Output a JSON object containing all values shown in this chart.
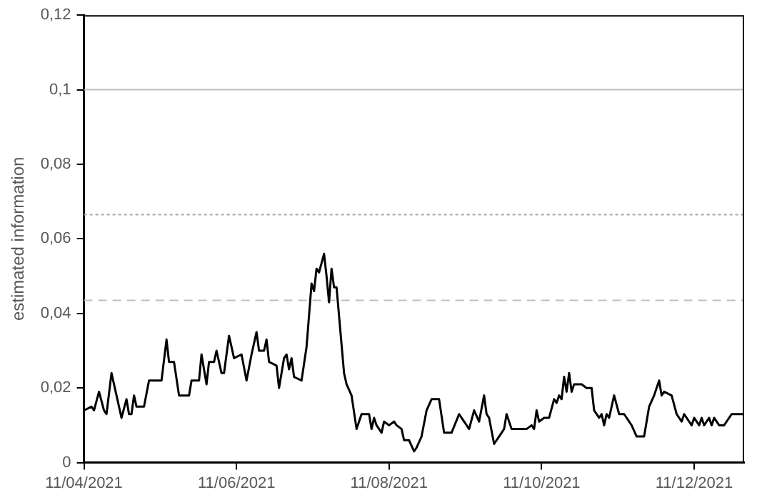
{
  "chart_data": {
    "type": "line",
    "ylabel": "estimated information",
    "x": [
      "2021-04-11",
      "2021-04-14",
      "2021-04-15",
      "2021-04-17",
      "2021-04-19",
      "2021-04-20",
      "2021-04-22",
      "2021-04-24",
      "2021-04-26",
      "2021-04-28",
      "2021-04-29",
      "2021-04-30",
      "2021-05-01",
      "2021-05-02",
      "2021-05-05",
      "2021-05-07",
      "2021-05-12",
      "2021-05-14",
      "2021-05-15",
      "2021-05-17",
      "2021-05-19",
      "2021-05-20",
      "2021-05-23",
      "2021-05-24",
      "2021-05-27",
      "2021-05-28",
      "2021-05-30",
      "2021-05-31",
      "2021-06-02",
      "2021-06-03",
      "2021-06-05",
      "2021-06-06",
      "2021-06-08",
      "2021-06-10",
      "2021-06-13",
      "2021-06-15",
      "2021-06-17",
      "2021-06-19",
      "2021-06-20",
      "2021-06-22",
      "2021-06-23",
      "2021-06-24",
      "2021-06-27",
      "2021-06-28",
      "2021-06-30",
      "2021-07-01",
      "2021-07-02",
      "2021-07-03",
      "2021-07-04",
      "2021-07-07",
      "2021-07-09",
      "2021-07-11",
      "2021-07-12",
      "2021-07-13",
      "2021-07-14",
      "2021-07-16",
      "2021-07-17",
      "2021-07-18",
      "2021-07-19",
      "2021-07-20",
      "2021-07-21",
      "2021-07-24",
      "2021-07-25",
      "2021-07-27",
      "2021-07-29",
      "2021-07-31",
      "2021-08-03",
      "2021-08-04",
      "2021-08-05",
      "2021-08-06",
      "2021-08-08",
      "2021-08-09",
      "2021-08-11",
      "2021-08-13",
      "2021-08-14",
      "2021-08-16",
      "2021-08-17",
      "2021-08-19",
      "2021-08-21",
      "2021-08-22",
      "2021-08-24",
      "2021-08-26",
      "2021-08-28",
      "2021-08-31",
      "2021-09-02",
      "2021-09-05",
      "2021-09-08",
      "2021-09-10",
      "2021-09-12",
      "2021-09-14",
      "2021-09-16",
      "2021-09-18",
      "2021-09-19",
      "2021-09-20",
      "2021-09-22",
      "2021-09-24",
      "2021-09-26",
      "2021-09-27",
      "2021-09-29",
      "2021-10-05",
      "2021-10-07",
      "2021-10-08",
      "2021-10-09",
      "2021-10-10",
      "2021-10-12",
      "2021-10-14",
      "2021-10-16",
      "2021-10-17",
      "2021-10-18",
      "2021-10-19",
      "2021-10-20",
      "2021-10-21",
      "2021-10-22",
      "2021-10-23",
      "2021-10-24",
      "2021-10-27",
      "2021-10-29",
      "2021-10-31",
      "2021-11-01",
      "2021-11-03",
      "2021-11-04",
      "2021-11-05",
      "2021-11-06",
      "2021-11-07",
      "2021-11-09",
      "2021-11-11",
      "2021-11-13",
      "2021-11-16",
      "2021-11-18",
      "2021-11-21",
      "2021-11-23",
      "2021-11-25",
      "2021-11-27",
      "2021-11-28",
      "2021-11-29",
      "2021-12-02",
      "2021-12-04",
      "2021-12-06",
      "2021-12-07",
      "2021-12-10",
      "2021-12-11",
      "2021-12-13",
      "2021-12-14",
      "2021-12-15",
      "2021-12-17",
      "2021-12-18",
      "2021-12-19",
      "2021-12-21",
      "2021-12-23",
      "2021-12-26",
      "2021-12-31"
    ],
    "series": [
      {
        "color": "#000000",
        "values": [
          0.014,
          0.015,
          0.014,
          0.019,
          0.014,
          0.013,
          0.024,
          0.018,
          0.012,
          0.017,
          0.013,
          0.013,
          0.018,
          0.015,
          0.015,
          0.022,
          0.022,
          0.033,
          0.027,
          0.027,
          0.018,
          0.018,
          0.018,
          0.022,
          0.022,
          0.029,
          0.021,
          0.027,
          0.027,
          0.03,
          0.024,
          0.024,
          0.034,
          0.028,
          0.029,
          0.022,
          0.029,
          0.035,
          0.03,
          0.03,
          0.033,
          0.027,
          0.026,
          0.02,
          0.028,
          0.029,
          0.025,
          0.028,
          0.023,
          0.022,
          0.031,
          0.048,
          0.046,
          0.052,
          0.051,
          0.056,
          0.05,
          0.043,
          0.052,
          0.047,
          0.047,
          0.024,
          0.021,
          0.018,
          0.009,
          0.013,
          0.013,
          0.009,
          0.012,
          0.01,
          0.008,
          0.011,
          0.01,
          0.011,
          0.01,
          0.009,
          0.006,
          0.006,
          0.003,
          0.004,
          0.007,
          0.014,
          0.017,
          0.017,
          0.008,
          0.008,
          0.013,
          0.011,
          0.009,
          0.014,
          0.011,
          0.018,
          0.013,
          0.012,
          0.005,
          0.007,
          0.009,
          0.013,
          0.009,
          0.009,
          0.01,
          0.009,
          0.014,
          0.011,
          0.012,
          0.012,
          0.017,
          0.016,
          0.018,
          0.017,
          0.023,
          0.019,
          0.024,
          0.019,
          0.021,
          0.021,
          0.02,
          0.02,
          0.014,
          0.012,
          0.013,
          0.01,
          0.013,
          0.012,
          0.018,
          0.013,
          0.013,
          0.01,
          0.007,
          0.007,
          0.015,
          0.018,
          0.022,
          0.018,
          0.019,
          0.018,
          0.013,
          0.011,
          0.013,
          0.01,
          0.012,
          0.01,
          0.012,
          0.01,
          0.012,
          0.01,
          0.012,
          0.01,
          0.01,
          0.013,
          0.013
        ]
      }
    ],
    "xlim": [
      "2021-04-11",
      "2021-12-31"
    ],
    "xticks": [
      {
        "value": "2021-04-11",
        "label": "11/04/2021"
      },
      {
        "value": "2021-06-11",
        "label": "11/06/2021"
      },
      {
        "value": "2021-08-11",
        "label": "11/08/2021"
      },
      {
        "value": "2021-10-11",
        "label": "11/10/2021"
      },
      {
        "value": "2021-12-11",
        "label": "11/12/2021"
      }
    ],
    "ylim": [
      0,
      0.12
    ],
    "yticks": [
      {
        "value": 0,
        "label": "0"
      },
      {
        "value": 0.02,
        "label": "0,02"
      },
      {
        "value": 0.04,
        "label": "0,04"
      },
      {
        "value": 0.06,
        "label": "0,06"
      },
      {
        "value": 0.08,
        "label": "0,08"
      },
      {
        "value": 0.1,
        "label": "0,1"
      },
      {
        "value": 0.12,
        "label": "0,12"
      }
    ],
    "ref_lines": [
      {
        "axis": "y",
        "value": 0.1,
        "color": "#bfbfbf",
        "line_style": "solid"
      },
      {
        "axis": "y",
        "value": 0.0665,
        "color": "#a6a6a6",
        "line_style": "dotted"
      },
      {
        "axis": "y",
        "value": 0.0435,
        "color": "#bfbfbf",
        "line_style": "dashed"
      }
    ],
    "grid": false,
    "legend": false,
    "marker": "none",
    "line_style": "solid"
  }
}
